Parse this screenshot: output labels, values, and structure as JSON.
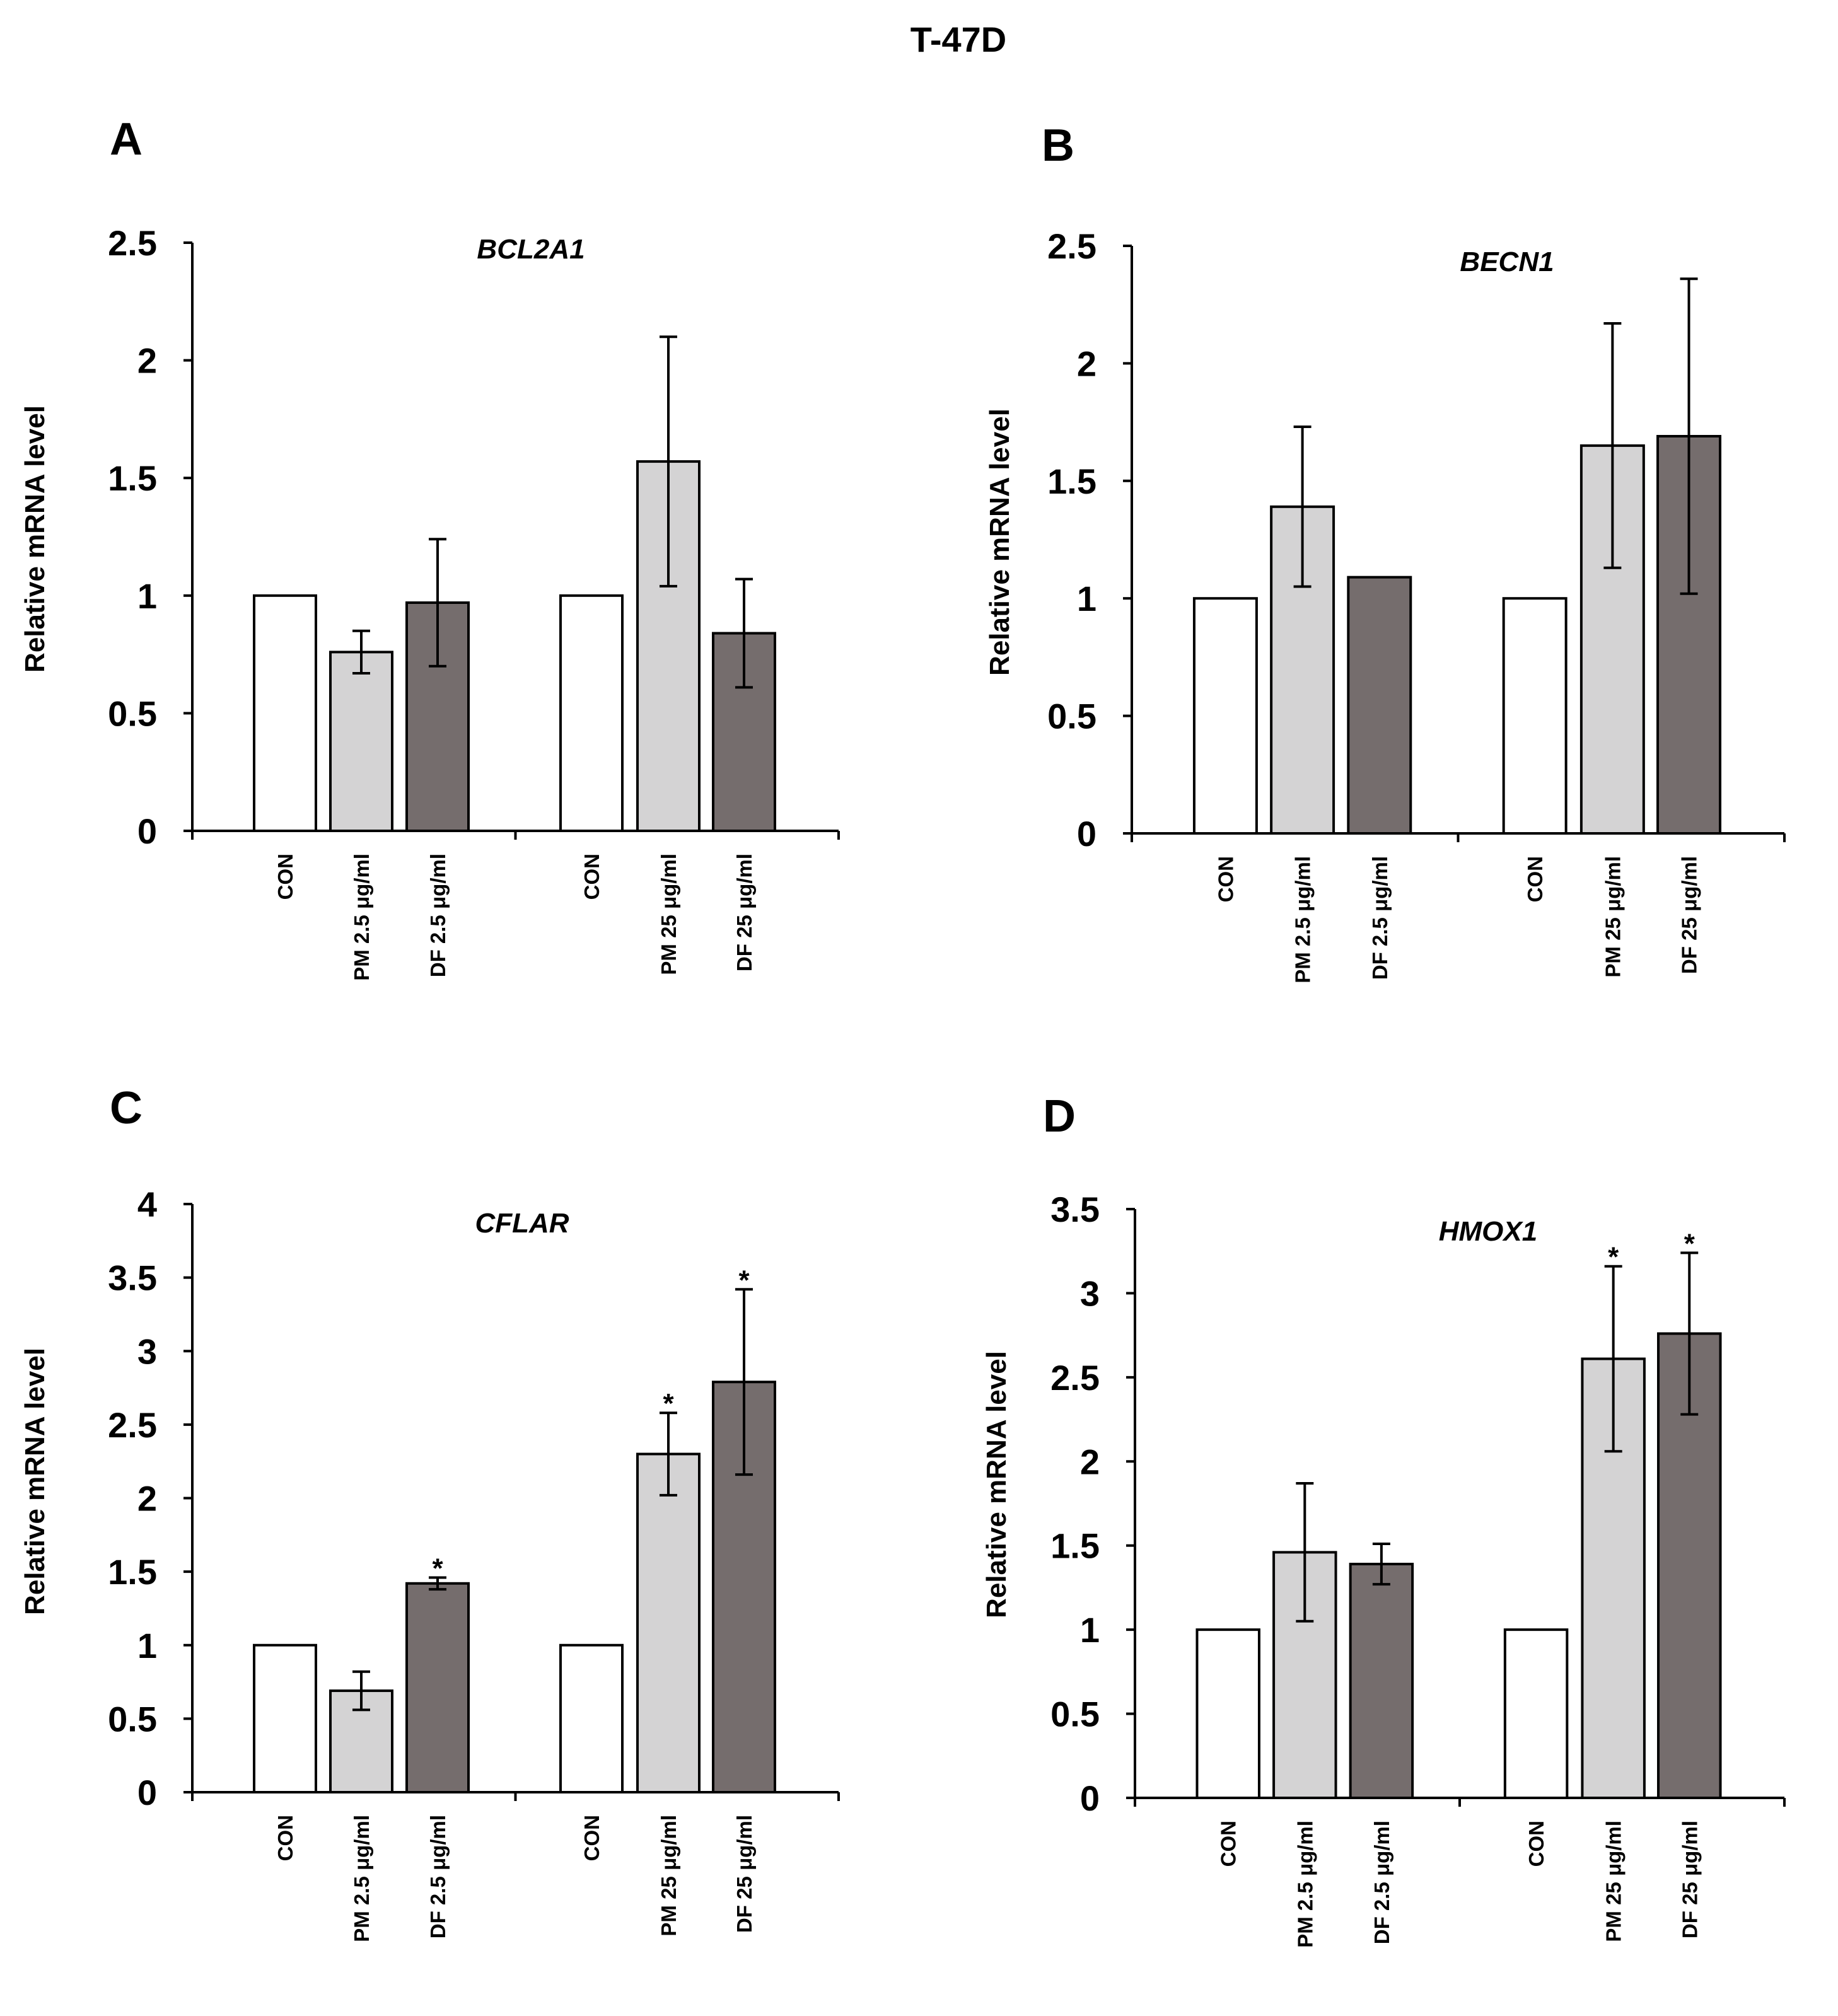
{
  "title": "T-47D",
  "colors": {
    "CON": "#ffffff",
    "PM": "#d4d3d4",
    "DF": "#756d6d",
    "axis": "#000000"
  },
  "chart_data": [
    {
      "panel": "A",
      "type": "bar",
      "gene": "BCL2A1",
      "ylabel": "Relative mRNA level",
      "ylim": [
        0,
        2.5
      ],
      "yticks": [
        "0",
        "0.5",
        "1",
        "1.5",
        "2",
        "2.5"
      ],
      "categories": [
        "CON",
        "PM 2.5 μg/ml",
        "DF 2.5 μg/ml",
        "CON",
        "PM 25 μg/ml",
        "DF 25 μg/ml"
      ],
      "groups": [
        "CON",
        "PM",
        "DF",
        "CON",
        "PM",
        "DF"
      ],
      "values": [
        1.0,
        0.76,
        0.97,
        1.0,
        1.57,
        0.84
      ],
      "errors": [
        0,
        0.09,
        0.27,
        0,
        0.53,
        0.23
      ],
      "significance": [
        "",
        "",
        "",
        "",
        "",
        ""
      ]
    },
    {
      "panel": "B",
      "type": "bar",
      "gene": "BECN1",
      "ylabel": "Relative mRNA level",
      "ylim": [
        0,
        2.5
      ],
      "yticks": [
        "0",
        "0.5",
        "1",
        "1.5",
        "2",
        "2.5"
      ],
      "categories": [
        "CON",
        "PM 2.5 μg/ml",
        "DF 2.5 μg/ml",
        "CON",
        "PM 25 μg/ml",
        "DF 25 μg/ml"
      ],
      "groups": [
        "CON",
        "PM",
        "DF",
        "CON",
        "PM",
        "DF"
      ],
      "values": [
        1.0,
        1.39,
        1.09,
        1.0,
        1.65,
        1.69
      ],
      "errors": [
        0,
        0.34,
        0,
        0,
        0.52,
        0.67
      ],
      "significance": [
        "",
        "",
        "",
        "",
        "",
        ""
      ]
    },
    {
      "panel": "C",
      "type": "bar",
      "gene": "CFLAR",
      "ylabel": "Relative mRNA level",
      "ylim": [
        0,
        4
      ],
      "yticks": [
        "0",
        "0.5",
        "1",
        "1.5",
        "2",
        "2.5",
        "3",
        "3.5",
        "4"
      ],
      "categories": [
        "CON",
        "PM 2.5 μg/ml",
        "DF 2.5 μg/ml",
        "CON",
        "PM 25 μg/ml",
        "DF 25 μg/ml"
      ],
      "groups": [
        "CON",
        "PM",
        "DF",
        "CON",
        "PM",
        "DF"
      ],
      "values": [
        1.0,
        0.69,
        1.42,
        1.0,
        2.3,
        2.79
      ],
      "errors": [
        0,
        0.13,
        0.04,
        0,
        0.28,
        0.63
      ],
      "significance": [
        "",
        "",
        "*",
        "",
        "*",
        "*"
      ]
    },
    {
      "panel": "D",
      "type": "bar",
      "gene": "HMOX1",
      "ylabel": "Relative mRNA level",
      "ylim": [
        0,
        3.5
      ],
      "yticks": [
        "0",
        "0.5",
        "1",
        "1.5",
        "2",
        "2.5",
        "3",
        "3.5"
      ],
      "categories": [
        "CON",
        "PM 2.5 μg/ml",
        "DF 2.5 μg/ml",
        "CON",
        "PM 25 μg/ml",
        "DF 25 μg/ml"
      ],
      "groups": [
        "CON",
        "PM",
        "DF",
        "CON",
        "PM",
        "DF"
      ],
      "values": [
        1.0,
        1.46,
        1.39,
        1.0,
        2.61,
        2.76
      ],
      "errors": [
        0,
        0.41,
        0.12,
        0,
        0.55,
        0.48
      ],
      "significance": [
        "",
        "",
        "",
        "",
        "*",
        "*"
      ]
    }
  ]
}
